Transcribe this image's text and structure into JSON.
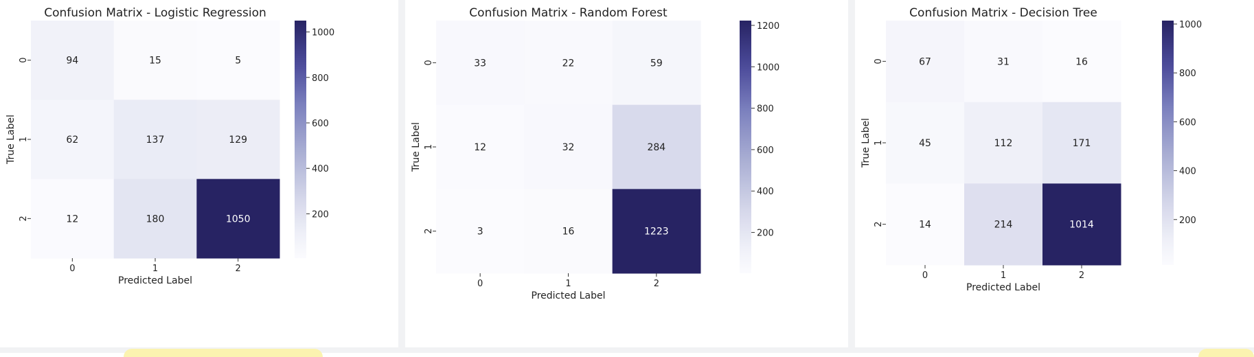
{
  "colors": {
    "cmap_low": "#fbfbfe",
    "cmap_high": "#272363",
    "text_dark": "#222222",
    "text_light": "#ffffff"
  },
  "chart_data": [
    {
      "type": "heatmap",
      "title": "Confusion Matrix - Logistic Regression",
      "xlabel": "Predicted Label",
      "ylabel": "True Label",
      "x_categories": [
        "0",
        "1",
        "2"
      ],
      "y_categories": [
        "0",
        "1",
        "2"
      ],
      "values": [
        [
          94,
          15,
          5
        ],
        [
          62,
          137,
          129
        ],
        [
          12,
          180,
          1050
        ]
      ],
      "colorbar_range": [
        5,
        1050
      ],
      "colorbar_ticks": [
        200,
        400,
        600,
        800,
        1000
      ]
    },
    {
      "type": "heatmap",
      "title": "Confusion Matrix - Random Forest",
      "xlabel": "Predicted Label",
      "ylabel": "True Label",
      "x_categories": [
        "0",
        "1",
        "2"
      ],
      "y_categories": [
        "0",
        "1",
        "2"
      ],
      "values": [
        [
          33,
          22,
          59
        ],
        [
          12,
          32,
          284
        ],
        [
          3,
          16,
          1223
        ]
      ],
      "colorbar_range": [
        3,
        1223
      ],
      "colorbar_ticks": [
        200,
        400,
        600,
        800,
        1000,
        1200
      ]
    },
    {
      "type": "heatmap",
      "title": "Confusion Matrix - Decision Tree",
      "xlabel": "Predicted Label",
      "ylabel": "True Label",
      "x_categories": [
        "0",
        "1",
        "2"
      ],
      "y_categories": [
        "0",
        "1",
        "2"
      ],
      "values": [
        [
          67,
          31,
          16
        ],
        [
          45,
          112,
          171
        ],
        [
          14,
          214,
          1014
        ]
      ],
      "colorbar_range": [
        14,
        1014
      ],
      "colorbar_ticks": [
        200,
        400,
        600,
        800,
        1000
      ]
    }
  ]
}
